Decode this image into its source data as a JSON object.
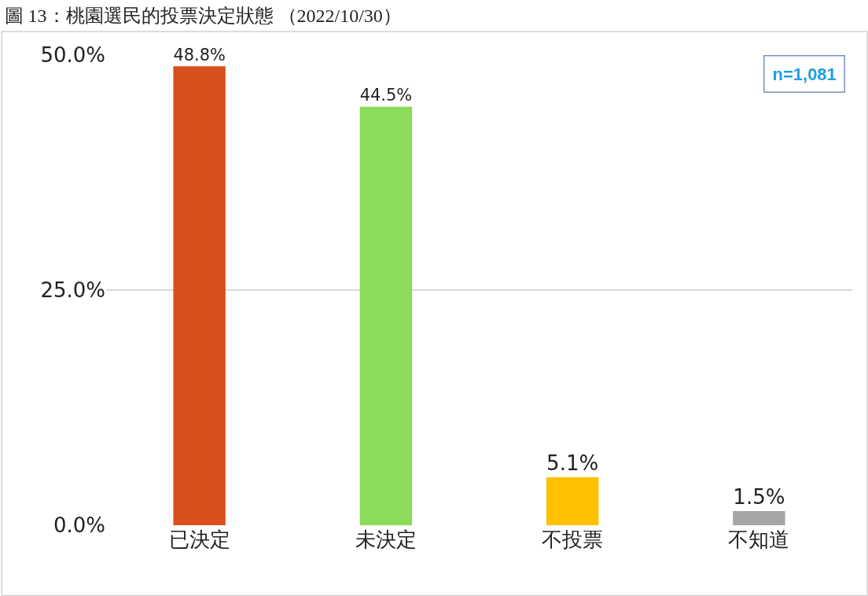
{
  "chart_data": {
    "type": "bar",
    "title": "圖 13：桃園選民的投票決定狀態 （2022/10/30）",
    "categories": [
      "已決定",
      "未決定",
      "不投票",
      "不知道"
    ],
    "values": [
      48.8,
      44.5,
      5.1,
      1.5
    ],
    "colors": [
      "#d9501e",
      "#8cdb5a",
      "#ffc000",
      "#a6a6a6"
    ],
    "value_labels": [
      "48.8%",
      "44.5%",
      "5.1%",
      "1.5%"
    ],
    "ylim": [
      0,
      50
    ],
    "yticks": [
      {
        "value": 0,
        "label": "0.0%"
      },
      {
        "value": 25,
        "label": "25.0%"
      },
      {
        "value": 50,
        "label": "50.0%"
      }
    ],
    "grid": "y",
    "legend": false,
    "annotations": [
      "n=1,081"
    ]
  }
}
